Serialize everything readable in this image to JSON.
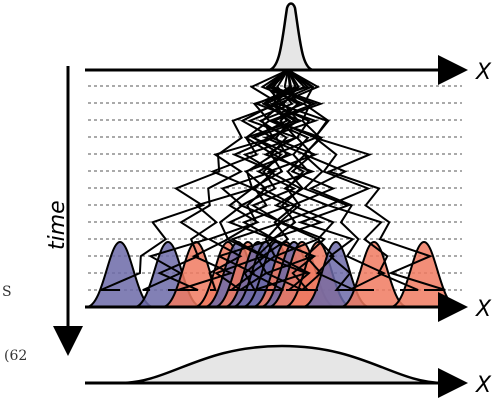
{
  "axes": {
    "x_label": "X",
    "time_label": "time"
  },
  "margin_text": {
    "s": "S",
    "eq_number": "(62"
  },
  "colors": {
    "blue_gaussian": "#6c6aa8",
    "red_gaussian": "#f07a60",
    "gray_fill": "#e6e6e6",
    "line": "#000000",
    "dashed": "#555555"
  }
}
